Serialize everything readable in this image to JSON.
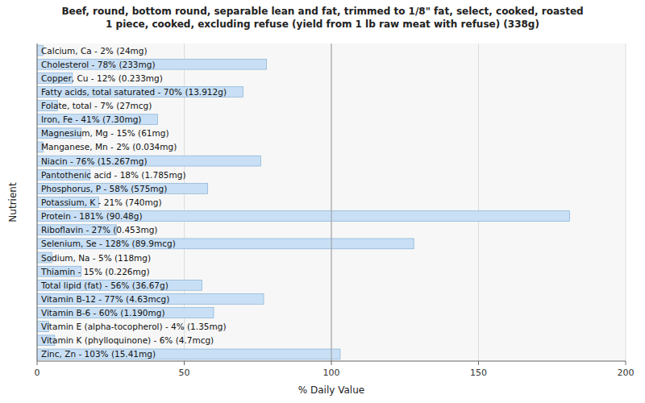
{
  "chart_data": {
    "type": "bar",
    "orientation": "horizontal",
    "title": "Beef, round, bottom round, separable lean and fat, trimmed to 1/8\" fat, select, cooked, roasted\n1 piece, cooked, excluding refuse (yield from 1 lb raw meat with refuse) (338g)",
    "x_label": "% Daily Value",
    "y_label": "Nutrient",
    "categories": [
      "Calcium, Ca - 2% (24mg)",
      "Cholesterol - 78% (233mg)",
      "Copper, Cu - 12% (0.233mg)",
      "Fatty acids, total saturated - 70% (13.912g)",
      "Folate, total - 7% (27mcg)",
      "Iron, Fe - 41% (7.30mg)",
      "Magnesium, Mg - 15% (61mg)",
      "Manganese, Mn - 2% (0.034mg)",
      "Niacin - 76% (15.267mg)",
      "Pantothenic acid - 18% (1.785mg)",
      "Phosphorus, P - 58% (575mg)",
      "Potassium, K - 21% (740mg)",
      "Protein - 181% (90.48g)",
      "Riboflavin - 27% (0.453mg)",
      "Selenium, Se - 128% (89.9mcg)",
      "Sodium, Na - 5% (118mg)",
      "Thiamin - 15% (0.226mg)",
      "Total lipid (fat) - 56% (36.67g)",
      "Vitamin B-12 - 77% (4.63mcg)",
      "Vitamin B-6 - 60% (1.190mg)",
      "Vitamin E (alpha-tocopherol) - 4% (1.35mg)",
      "Vitamin K (phylloquinone) - 6% (4.7mcg)",
      "Zinc, Zn - 103% (15.41mg)"
    ],
    "values": [
      2,
      78,
      12,
      70,
      7,
      41,
      15,
      2,
      76,
      18,
      58,
      21,
      181,
      27,
      128,
      5,
      15,
      56,
      77,
      60,
      4,
      6,
      103
    ],
    "color": "#c8dff5",
    "xlim": [
      0,
      200
    ],
    "xticks": [
      0,
      50,
      100,
      150,
      200
    ],
    "grid": true,
    "reference_line_x": 100
  }
}
